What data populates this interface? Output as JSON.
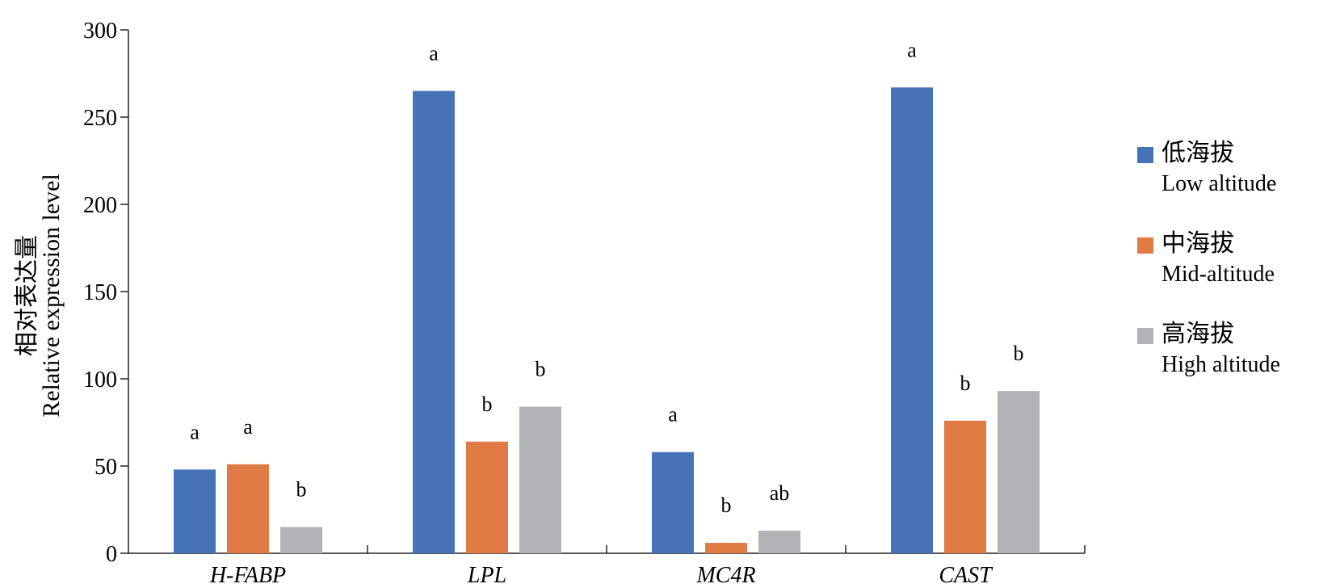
{
  "chart_data": {
    "type": "bar",
    "categories": [
      "H-FABP",
      "LPL",
      "MC4R",
      "CAST"
    ],
    "series": [
      {
        "name": "低海拔 Low altitude",
        "name_cn": "低海拔",
        "name_en": "Low altitude",
        "color": "#4672b8",
        "values": [
          48,
          265,
          58,
          267
        ],
        "labels": [
          "a",
          "a",
          "a",
          "a"
        ]
      },
      {
        "name": "中海拔 Mid-altitude",
        "name_cn": "中海拔",
        "name_en": "Mid-altitude",
        "color": "#e07b45",
        "values": [
          51,
          64,
          6,
          76
        ],
        "labels": [
          "a",
          "b",
          "b",
          "b"
        ]
      },
      {
        "name": "高海拔 High altitude",
        "name_cn": "高海拔",
        "name_en": "High altitude",
        "color": "#b2b3b6",
        "values": [
          15,
          84,
          13,
          93
        ],
        "labels": [
          "b",
          "b",
          "ab",
          "b"
        ]
      }
    ],
    "ylabel_cn": "相对表达量",
    "ylabel_en": "Relative expression level",
    "xlabel": "",
    "ylim": [
      0,
      300
    ],
    "yticks": [
      0,
      50,
      100,
      150,
      200,
      250,
      300
    ],
    "grid": false,
    "legend_position": "right"
  }
}
